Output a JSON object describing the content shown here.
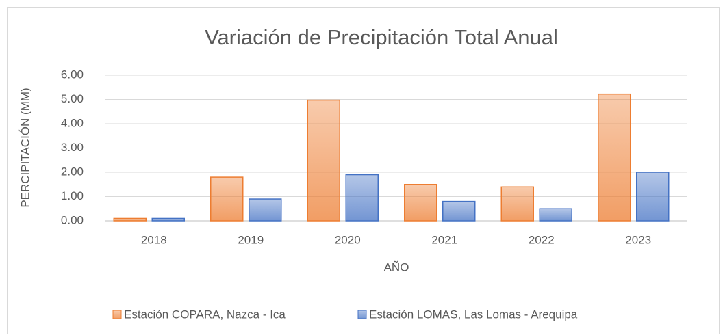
{
  "chart_data": {
    "type": "bar",
    "title": "Variación de Precipitación Total Anual",
    "x_label": "AÑO",
    "y_label": "PERCIPITACIÓN (MM)",
    "categories": [
      "2018",
      "2019",
      "2020",
      "2021",
      "2022",
      "2023"
    ],
    "series": [
      {
        "name": "Estación COPARA, Nazca - Ica",
        "color": "#ed7d31",
        "values": [
          0.1,
          1.8,
          4.97,
          1.5,
          1.4,
          5.22
        ]
      },
      {
        "name": "Estación LOMAS, Las Lomas - Arequipa",
        "color": "#4472c4",
        "values": [
          0.1,
          0.9,
          1.9,
          0.8,
          0.5,
          2.0
        ]
      }
    ],
    "ylim": [
      0,
      6
    ],
    "yticks": [
      {
        "value": 0,
        "label": "0.00"
      },
      {
        "value": 1,
        "label": "1.00"
      },
      {
        "value": 2,
        "label": "2.00"
      },
      {
        "value": 3,
        "label": "3.00"
      },
      {
        "value": 4,
        "label": "4.00"
      },
      {
        "value": 5,
        "label": "5.00"
      },
      {
        "value": 6,
        "label": "6.00"
      }
    ],
    "grid": true,
    "legend": "bottom"
  }
}
